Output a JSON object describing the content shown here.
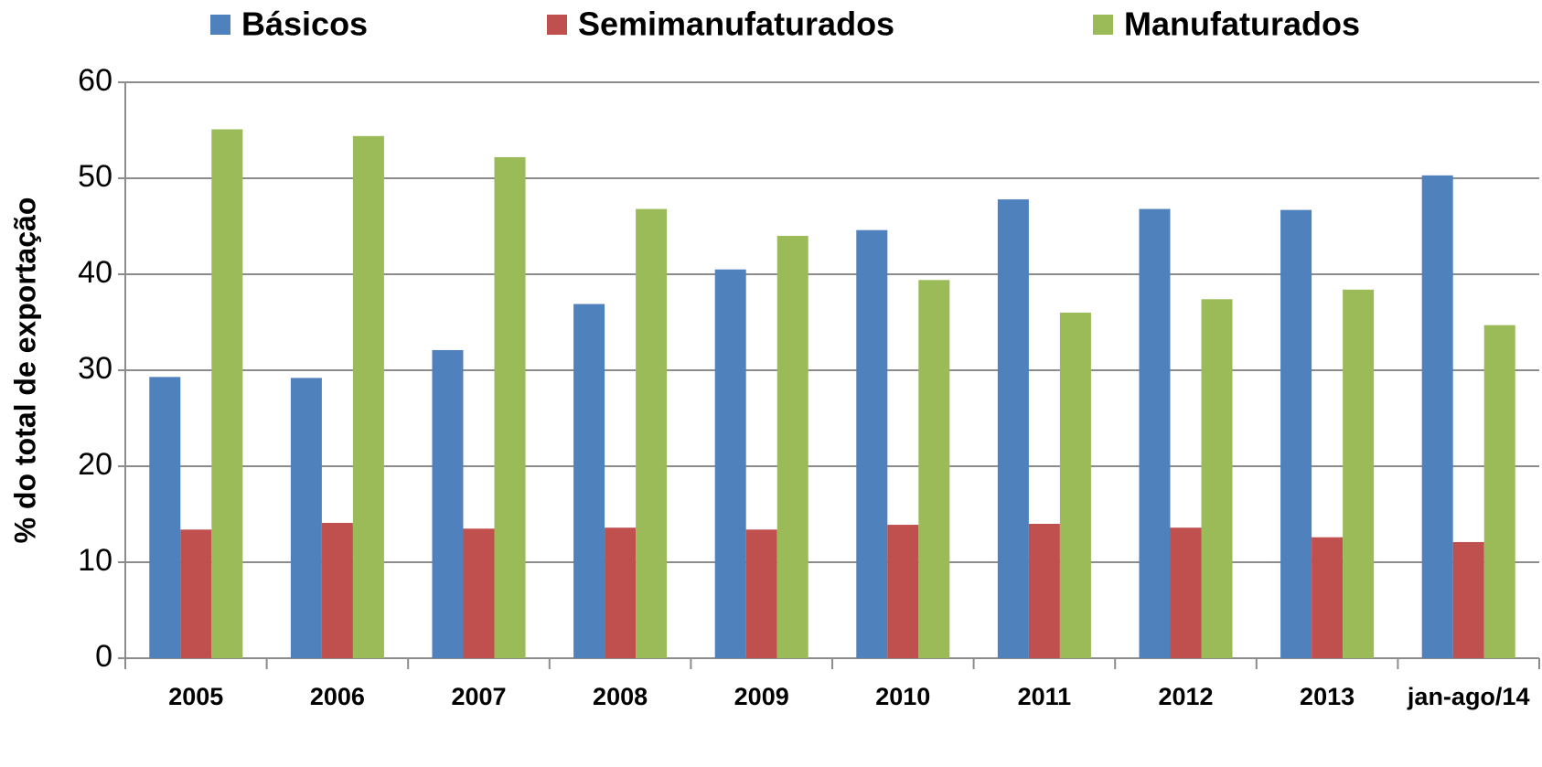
{
  "chart_data": {
    "type": "bar",
    "y_label": "% do total de exportação",
    "categories": [
      "2005",
      "2006",
      "2007",
      "2008",
      "2009",
      "2010",
      "2011",
      "2012",
      "2013",
      "jan-ago/14"
    ],
    "series": [
      {
        "name": "Básicos",
        "color": "#4f81bd",
        "values": [
          29.3,
          29.2,
          32.1,
          36.9,
          40.5,
          44.6,
          47.8,
          46.8,
          46.7,
          50.3
        ]
      },
      {
        "name": "Semimanufaturados",
        "color": "#c0504d",
        "values": [
          13.4,
          14.1,
          13.5,
          13.6,
          13.4,
          13.9,
          14.0,
          13.6,
          12.6,
          12.1
        ]
      },
      {
        "name": "Manufaturados",
        "color": "#9bbb59",
        "values": [
          55.1,
          54.4,
          52.2,
          46.8,
          44.0,
          39.4,
          36.0,
          37.4,
          38.4,
          34.7
        ]
      }
    ],
    "ylim": [
      0,
      60
    ],
    "yticks": [
      0,
      10,
      20,
      30,
      40,
      50,
      60
    ],
    "grid": true
  }
}
